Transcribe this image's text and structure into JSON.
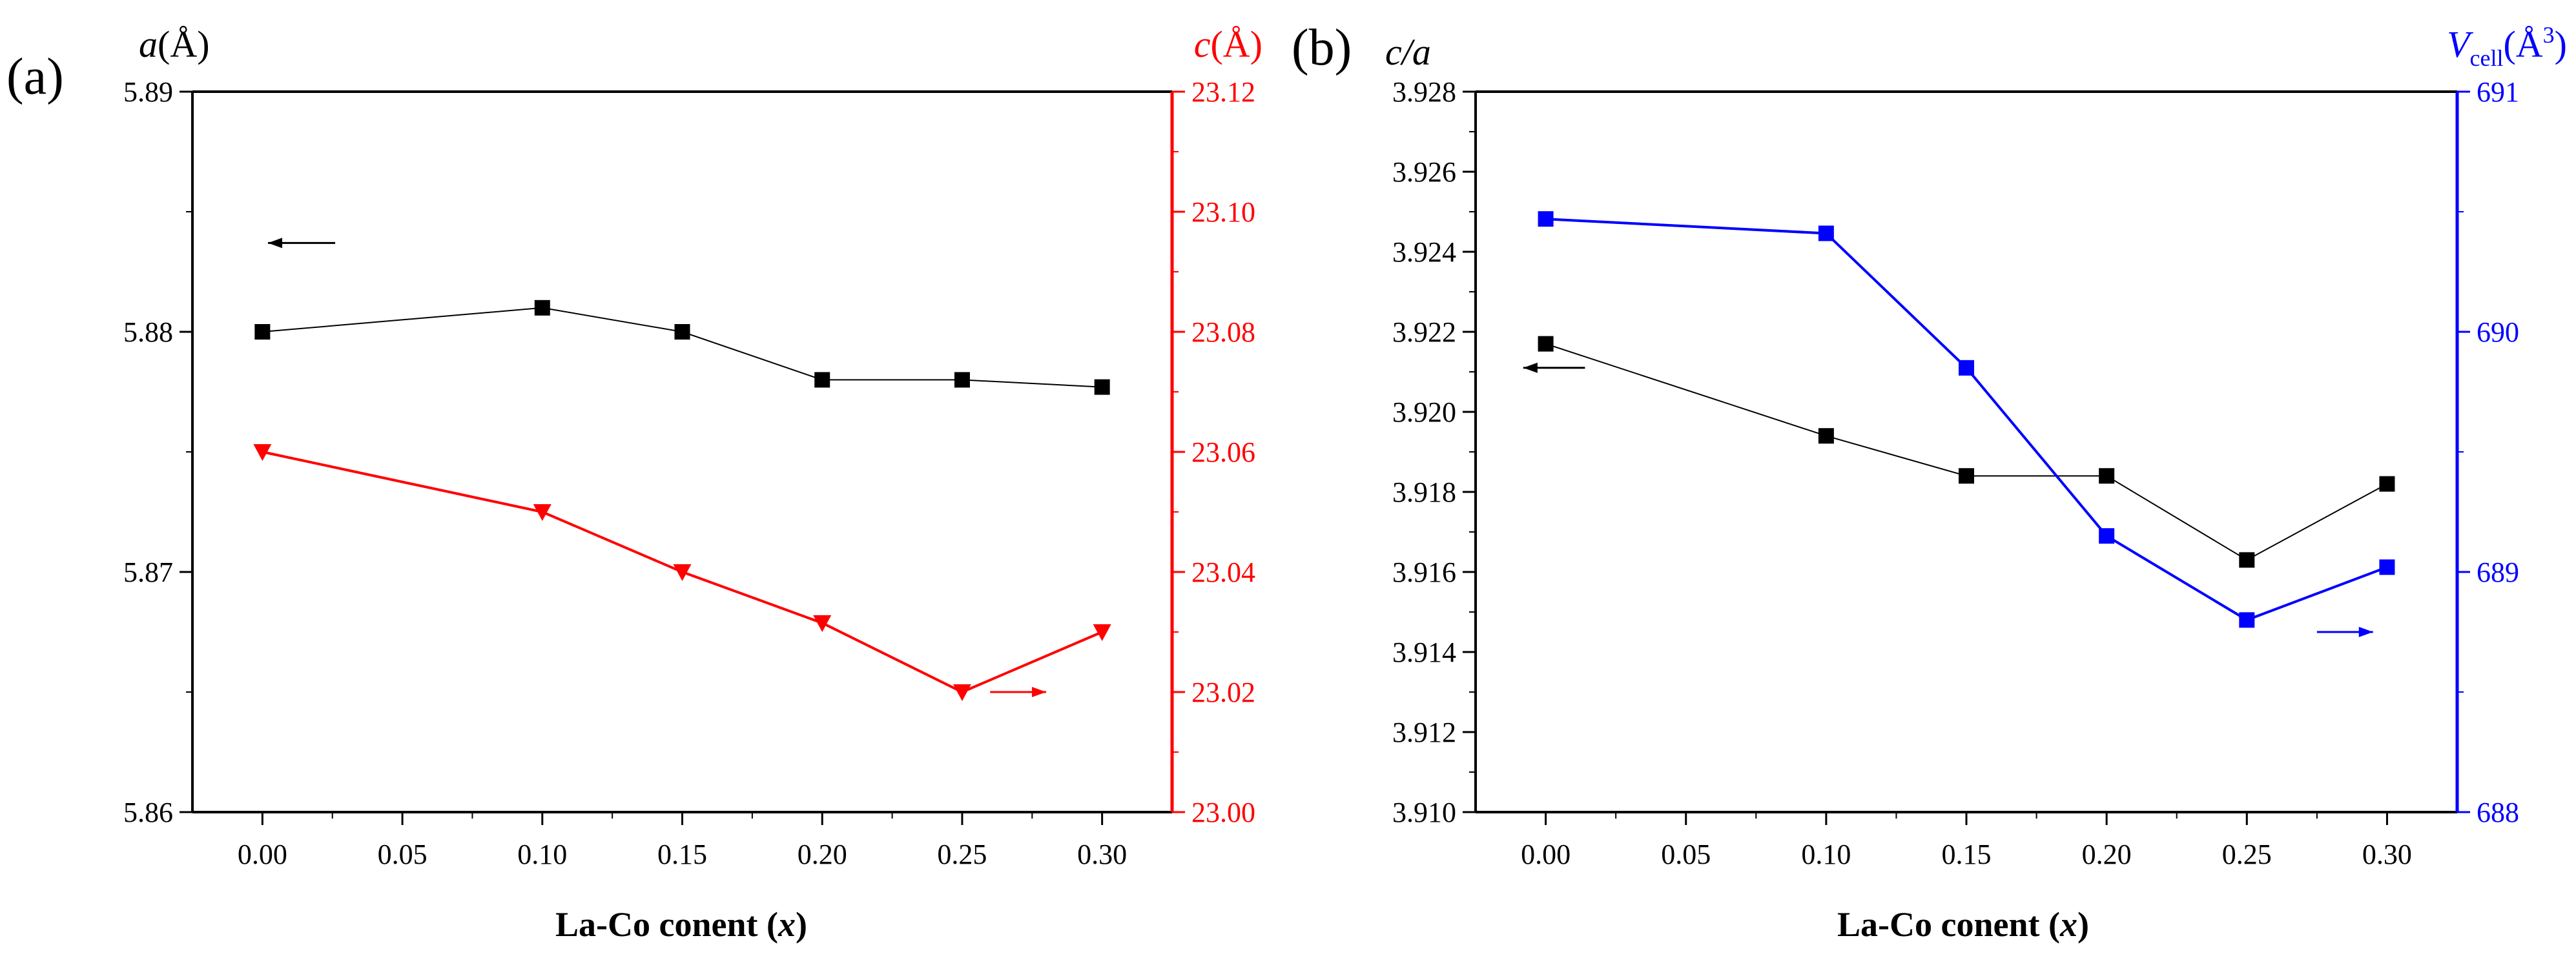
{
  "chart_data": [
    {
      "panel": "(a)",
      "type": "line",
      "xlabel": "La-Co conent (x)",
      "xlabel_main": "La-Co conent (",
      "xlabel_var": "x",
      "xlabel_close": ")",
      "xlim": [
        -0.025,
        0.325
      ],
      "xticks": [
        "0.00",
        "0.05",
        "0.10",
        "0.15",
        "0.20",
        "0.25",
        "0.30"
      ],
      "xtick_values": [
        0.0,
        0.05,
        0.1,
        0.15,
        0.2,
        0.25,
        0.3
      ],
      "left_axis": {
        "label": "a(Å)",
        "label_var": "a",
        "label_unit": "(Å)",
        "ylim": [
          5.86,
          5.89
        ],
        "ticks": [
          "5.86",
          "5.87",
          "5.88",
          "5.89"
        ],
        "tick_values": [
          5.86,
          5.87,
          5.88,
          5.89
        ],
        "color": "#000000"
      },
      "right_axis": {
        "label": "c(Å)",
        "label_var": "c",
        "label_unit": "(Å)",
        "ylim": [
          23.0,
          23.12
        ],
        "ticks": [
          "23.00",
          "23.02",
          "23.04",
          "23.06",
          "23.08",
          "23.10",
          "23.12"
        ],
        "tick_values": [
          23.0,
          23.02,
          23.04,
          23.06,
          23.08,
          23.1,
          23.12
        ],
        "color": "#ff0000"
      },
      "series": [
        {
          "name": "a",
          "axis": "left",
          "marker": "square",
          "color": "#000000",
          "x": [
            0.0,
            0.1,
            0.15,
            0.2,
            0.25,
            0.3
          ],
          "y": [
            5.88,
            5.881,
            5.88,
            5.878,
            5.878,
            5.8777
          ]
        },
        {
          "name": "c",
          "axis": "right",
          "marker": "triangle-down",
          "color": "#ff0000",
          "x": [
            0.0,
            0.1,
            0.15,
            0.2,
            0.25,
            0.3
          ],
          "y": [
            23.06,
            23.05,
            23.04,
            23.0315,
            23.02,
            23.03
          ]
        }
      ],
      "annotations": [
        {
          "direction": "left",
          "axis": "left",
          "x": [
            0.026,
            0.002
          ],
          "y": 5.8837
        },
        {
          "direction": "right",
          "axis": "right",
          "x": [
            0.26,
            0.28
          ],
          "y": 23.02
        }
      ]
    },
    {
      "panel": "(b)",
      "type": "line",
      "xlabel": "La-Co conent (x)",
      "xlabel_main": "La-Co conent (",
      "xlabel_var": "x",
      "xlabel_close": ")",
      "xlim": [
        -0.025,
        0.325
      ],
      "xticks": [
        "0.00",
        "0.05",
        "0.10",
        "0.15",
        "0.20",
        "0.25",
        "0.30"
      ],
      "xtick_values": [
        0.0,
        0.05,
        0.1,
        0.15,
        0.2,
        0.25,
        0.3
      ],
      "left_axis": {
        "label": "c/a",
        "label_var": "c/a",
        "ylim": [
          3.91,
          3.928
        ],
        "ticks": [
          "3.910",
          "3.912",
          "3.914",
          "3.916",
          "3.918",
          "3.920",
          "3.922",
          "3.924",
          "3.926",
          "3.928"
        ],
        "tick_values": [
          3.91,
          3.912,
          3.914,
          3.916,
          3.918,
          3.92,
          3.922,
          3.924,
          3.926,
          3.928
        ],
        "color": "#000000"
      },
      "right_axis": {
        "label": "Vcell(Å3)",
        "label_var": "V",
        "label_sub": "cell",
        "label_unit": "(Å",
        "label_sup": "3",
        "label_close": ")",
        "ylim": [
          688,
          691
        ],
        "ticks": [
          "688",
          "689",
          "690",
          "691"
        ],
        "tick_values": [
          688,
          689,
          690,
          691
        ],
        "color": "#0000ff"
      },
      "series": [
        {
          "name": "c/a",
          "axis": "left",
          "marker": "square",
          "color": "#000000",
          "x": [
            0.0,
            0.1,
            0.15,
            0.2,
            0.25,
            0.3
          ],
          "y": [
            3.9217,
            3.9194,
            3.9184,
            3.9184,
            3.9163,
            3.9182
          ]
        },
        {
          "name": "Vcell",
          "axis": "right",
          "marker": "square",
          "color": "#0000ff",
          "x": [
            0.0,
            0.1,
            0.15,
            0.2,
            0.25,
            0.3
          ],
          "y": [
            690.47,
            690.41,
            689.85,
            689.15,
            688.8,
            689.02
          ]
        }
      ],
      "annotations": [
        {
          "direction": "left",
          "axis": "left",
          "x": [
            0.014,
            -0.008
          ],
          "y": 3.9211
        },
        {
          "direction": "right",
          "axis": "right",
          "x": [
            0.275,
            0.295
          ],
          "y": 688.75
        }
      ]
    }
  ]
}
